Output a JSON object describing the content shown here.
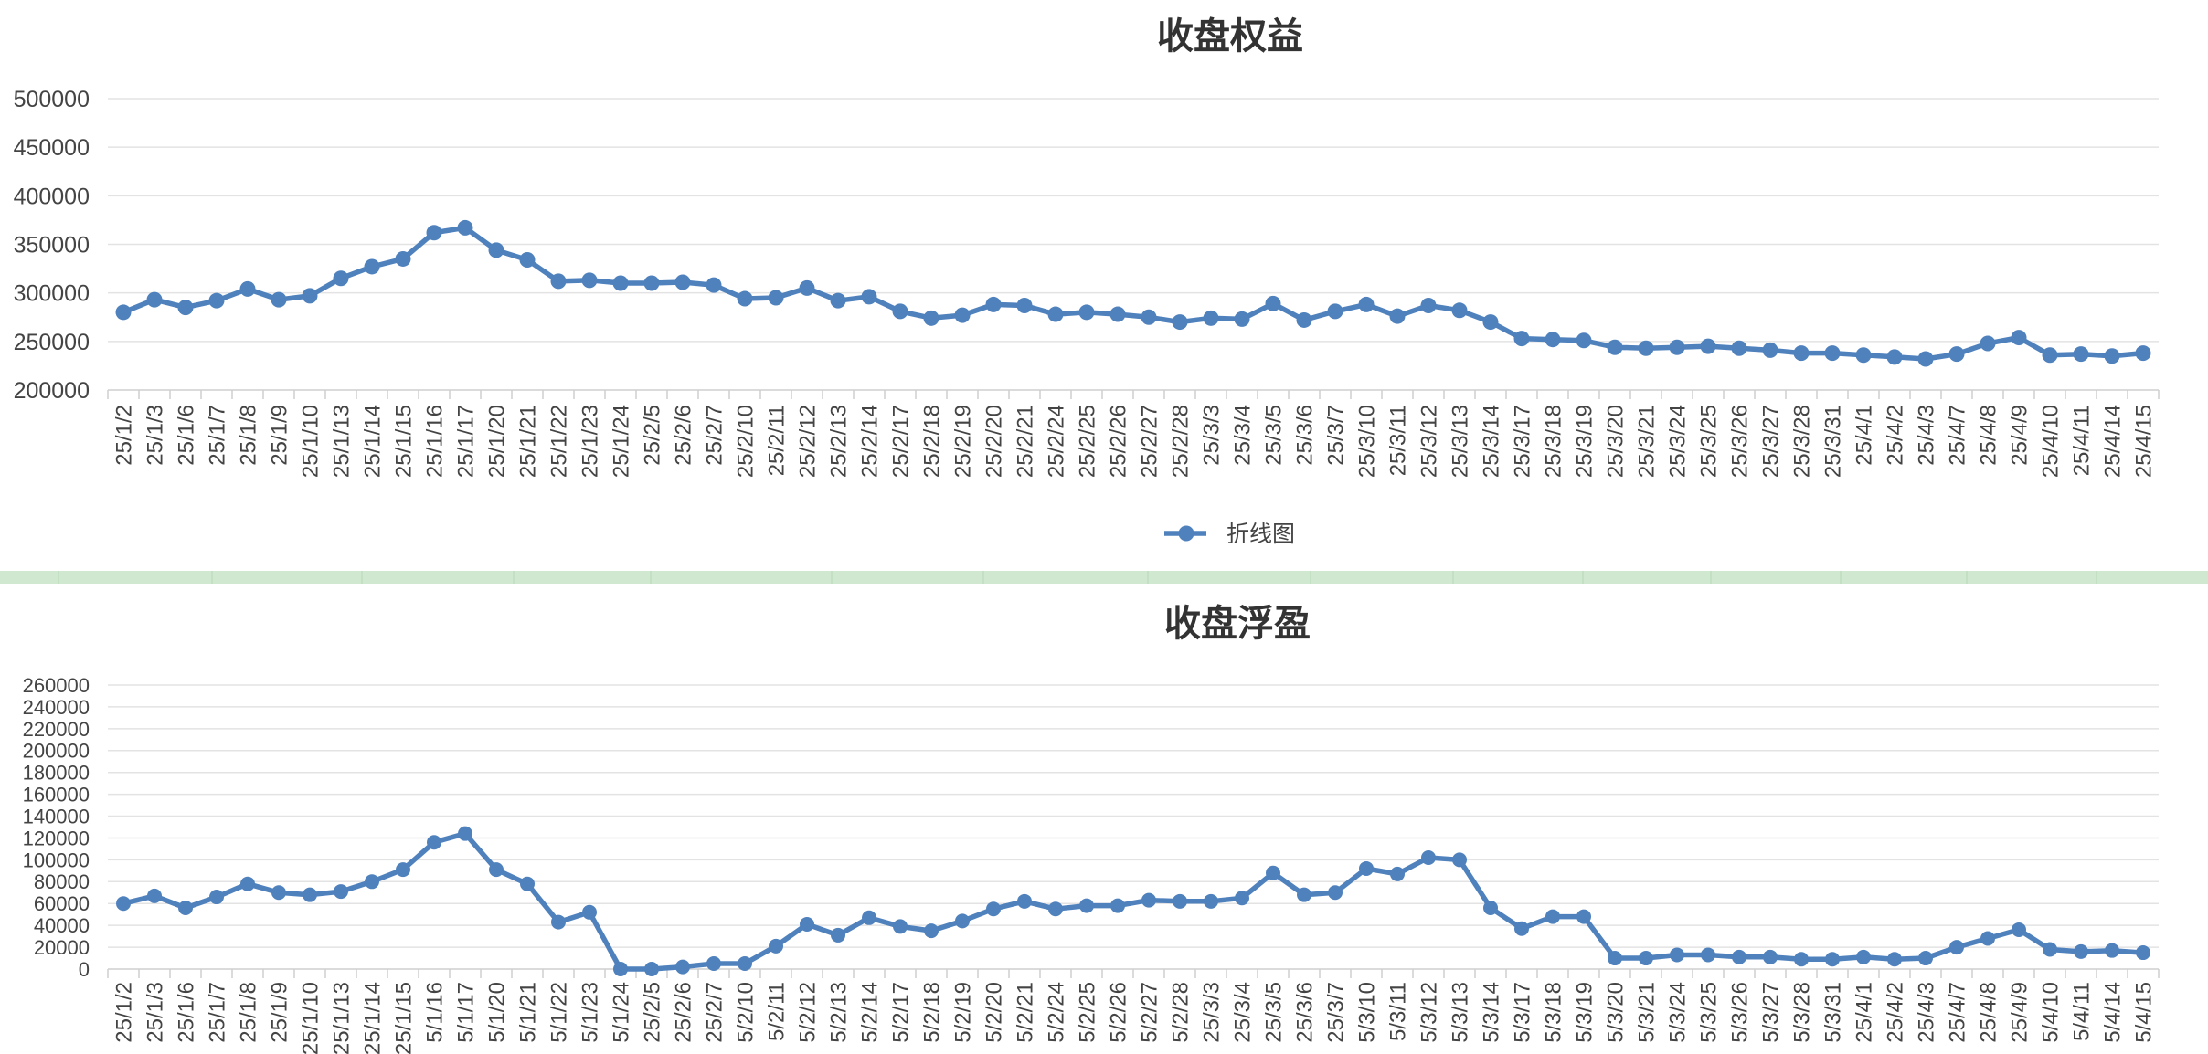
{
  "divider_color": "#cfe8cf",
  "series_color": "#4f81bd",
  "chart_data": [
    {
      "type": "line",
      "title": "收盘权益",
      "xlabel": "",
      "ylabel": "",
      "ylim": [
        200000,
        500000
      ],
      "yticks": [
        "500000",
        "450000",
        "400000",
        "350000",
        "300000",
        "250000",
        "200000"
      ],
      "grid": true,
      "legend": "bottom",
      "categories": [
        "25/1/2",
        "25/1/3",
        "25/1/6",
        "25/1/7",
        "25/1/8",
        "25/1/9",
        "25/1/10",
        "25/1/13",
        "25/1/14",
        "25/1/15",
        "25/1/16",
        "25/1/17",
        "25/1/20",
        "25/1/21",
        "25/1/22",
        "25/1/23",
        "25/1/24",
        "25/2/5",
        "25/2/6",
        "25/2/7",
        "25/2/10",
        "25/2/11",
        "25/2/12",
        "25/2/13",
        "25/2/14",
        "25/2/17",
        "25/2/18",
        "25/2/19",
        "25/2/20",
        "25/2/21",
        "25/2/24",
        "25/2/25",
        "25/2/26",
        "25/2/27",
        "25/2/28",
        "25/3/3",
        "25/3/4",
        "25/3/5",
        "25/3/6",
        "25/3/7",
        "25/3/10",
        "25/3/11",
        "25/3/12",
        "25/3/13",
        "25/3/14",
        "25/3/17",
        "25/3/18",
        "25/3/19",
        "25/3/20",
        "25/3/21",
        "25/3/24",
        "25/3/25",
        "25/3/26",
        "25/3/27",
        "25/3/28",
        "25/3/31",
        "25/4/1",
        "25/4/2",
        "25/4/3",
        "25/4/7",
        "25/4/8",
        "25/4/9",
        "25/4/10",
        "25/4/11",
        "25/4/14",
        "25/4/15"
      ],
      "series": [
        {
          "name": "折线图",
          "values": [
            280000,
            293000,
            285000,
            292000,
            304000,
            293000,
            297000,
            315000,
            327000,
            335000,
            362000,
            367000,
            344000,
            334000,
            312000,
            313000,
            310000,
            310000,
            311000,
            308000,
            294000,
            295000,
            305000,
            292000,
            296000,
            281000,
            274000,
            277000,
            288000,
            287000,
            278000,
            280000,
            278000,
            275000,
            270000,
            274000,
            273000,
            289000,
            272000,
            281000,
            288000,
            276000,
            287000,
            282000,
            270000,
            253000,
            252000,
            251000,
            244000,
            243000,
            244000,
            245000,
            243000,
            241000,
            238000,
            238000,
            236000,
            234000,
            232000,
            237000,
            248000,
            254000,
            236000,
            237000,
            235000,
            238000
          ]
        }
      ]
    },
    {
      "type": "line",
      "title": "收盘浮盈",
      "xlabel": "",
      "ylabel": "",
      "ylim": [
        0,
        260000
      ],
      "yticks": [
        "260000",
        "240000",
        "220000",
        "200000",
        "180000",
        "160000",
        "140000",
        "120000",
        "100000",
        "80000",
        "60000",
        "40000",
        "20000",
        "0"
      ],
      "grid": true,
      "categories": [
        "25/1/2",
        "25/1/3",
        "25/1/6",
        "25/1/7",
        "25/1/8",
        "25/1/9",
        "25/1/10",
        "25/1/13",
        "25/1/14",
        "25/1/15",
        "5/1/16",
        "5/1/17",
        "5/1/20",
        "5/1/21",
        "5/1/22",
        "5/1/23",
        "5/1/24",
        "25/2/5",
        "25/2/6",
        "25/2/7",
        "5/2/10",
        "5/2/11",
        "5/2/12",
        "5/2/13",
        "5/2/14",
        "5/2/17",
        "5/2/18",
        "5/2/19",
        "5/2/20",
        "5/2/21",
        "5/2/24",
        "5/2/25",
        "5/2/26",
        "5/2/27",
        "5/2/28",
        "25/3/3",
        "25/3/4",
        "25/3/5",
        "25/3/6",
        "25/3/7",
        "5/3/10",
        "5/3/11",
        "5/3/12",
        "5/3/13",
        "5/3/14",
        "5/3/17",
        "5/3/18",
        "5/3/19",
        "5/3/20",
        "5/3/21",
        "5/3/24",
        "5/3/25",
        "5/3/26",
        "5/3/27",
        "5/3/28",
        "5/3/31",
        "25/4/1",
        "25/4/2",
        "25/4/3",
        "25/4/7",
        "25/4/8",
        "25/4/9",
        "5/4/10",
        "5/4/11",
        "5/4/14",
        "5/4/15"
      ],
      "series": [
        {
          "values": [
            60000,
            67000,
            56000,
            66000,
            78000,
            70000,
            68000,
            71000,
            80000,
            91000,
            116000,
            124000,
            91000,
            78000,
            43000,
            52000,
            0,
            0,
            2000,
            5000,
            5000,
            21000,
            41000,
            31000,
            47000,
            39000,
            35000,
            44000,
            55000,
            62000,
            55000,
            58000,
            58000,
            63000,
            62000,
            62000,
            65000,
            88000,
            68000,
            70000,
            92000,
            87000,
            102000,
            100000,
            56000,
            37000,
            48000,
            48000,
            10000,
            10000,
            13000,
            13000,
            11000,
            11000,
            9000,
            9000,
            11000,
            9000,
            10000,
            20000,
            28000,
            36000,
            18000,
            16000,
            17000,
            15000
          ]
        }
      ]
    }
  ]
}
